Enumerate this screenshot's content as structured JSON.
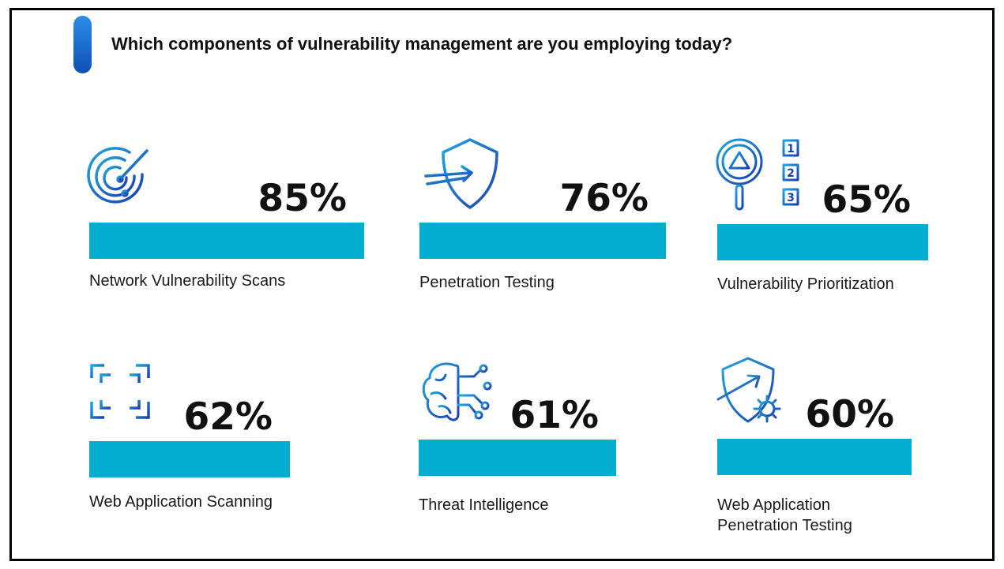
{
  "chart_data": {
    "type": "bar",
    "title": "Which components of vulnerability management are you employing today?",
    "categories": [
      "Network Vulnerability Scans",
      "Penetration Testing",
      "Vulnerability Prioritization",
      "Web Application Scanning",
      "Threat Intelligence",
      "Web Application Penetration Testing"
    ],
    "values": [
      85,
      76,
      65,
      62,
      61,
      60
    ],
    "value_labels": [
      "85%",
      "76%",
      "65%",
      "62%",
      "61%",
      "60%"
    ],
    "label_lines": [
      [
        "Network Vulnerability Scans"
      ],
      [
        "Penetration Testing"
      ],
      [
        "Vulnerability Prioritization"
      ],
      [
        "Web Application Scanning"
      ],
      [
        "Threat Intelligence"
      ],
      [
        "Web Application",
        "Penetration Testing"
      ]
    ],
    "icons": [
      "radar-icon",
      "shield-arrow-icon",
      "magnifier-warning-list-icon",
      "scan-frame-icon",
      "brain-circuit-icon",
      "shield-gear-icon"
    ],
    "colors": {
      "bar": "#04aed1",
      "accent_top": "#2b8ee6",
      "accent_bottom": "#0f4fb7"
    }
  }
}
